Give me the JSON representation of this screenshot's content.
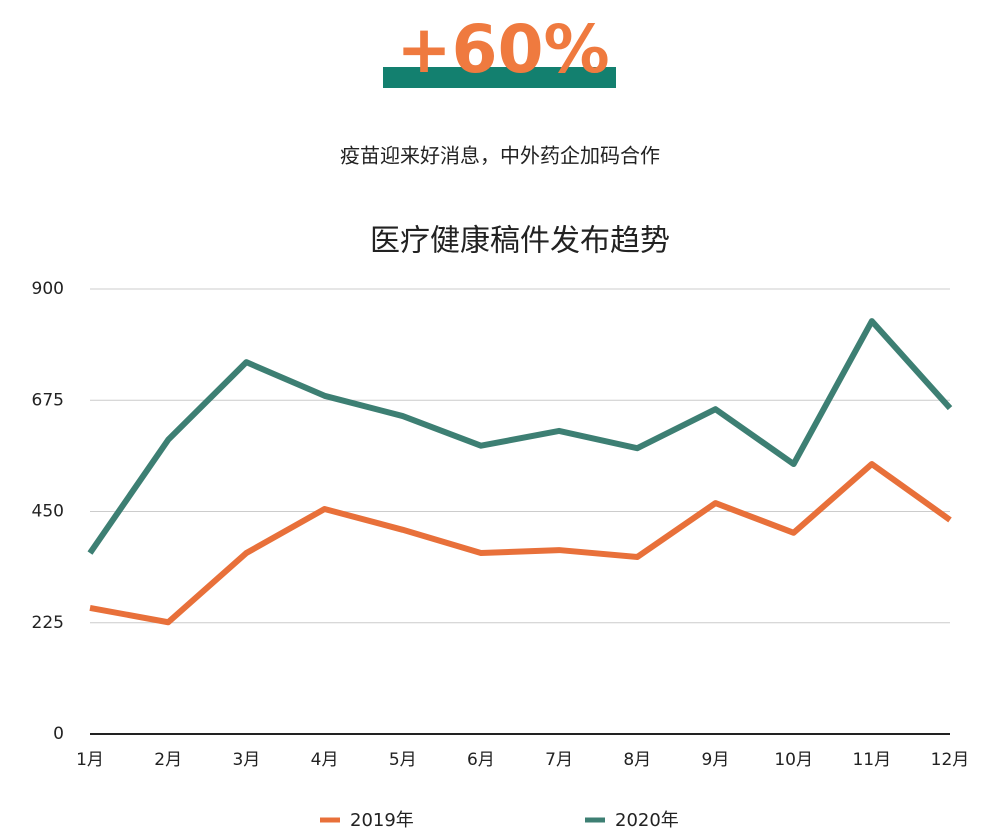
{
  "header": {
    "headline": "+60%",
    "subtitle": "疫苗迎来好消息，中外药企加码合作"
  },
  "chart_data": {
    "type": "line",
    "title": "医疗健康稿件发布趋势",
    "categories": [
      "1月",
      "2月",
      "3月",
      "4月",
      "5月",
      "6月",
      "7月",
      "8月",
      "9月",
      "10月",
      "11月",
      "12月"
    ],
    "series": [
      {
        "name": "2019年",
        "color": "#e8703a",
        "values": [
          255,
          226,
          366,
          455,
          413,
          366,
          372,
          358,
          467,
          407,
          546,
          433
        ]
      },
      {
        "name": "2020年",
        "color": "#3d7f73",
        "values": [
          366,
          595,
          752,
          684,
          643,
          583,
          613,
          578,
          657,
          546,
          835,
          659
        ]
      }
    ],
    "ylim": [
      0,
      900
    ],
    "yticks": [
      0,
      225,
      450,
      675,
      900
    ],
    "grid": true,
    "legend": "bottom"
  }
}
